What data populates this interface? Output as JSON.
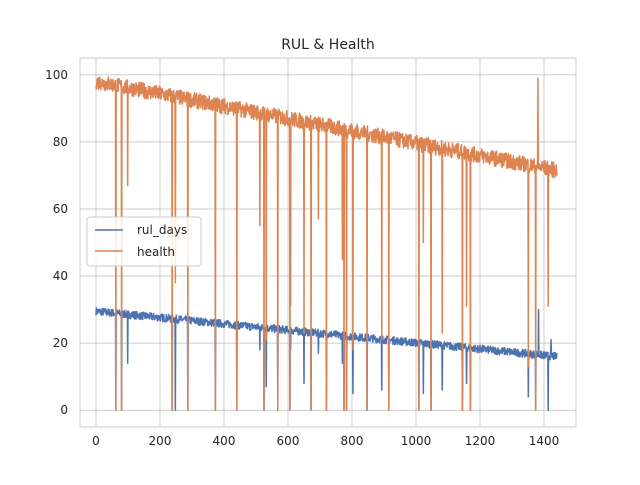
{
  "chart_data": {
    "type": "line",
    "title": "RUL & Health",
    "xlabel": "",
    "ylabel": "",
    "xlim": [
      -50,
      1500
    ],
    "ylim": [
      -5,
      105
    ],
    "xticks": [
      0,
      200,
      400,
      600,
      800,
      1000,
      1200,
      1400
    ],
    "yticks": [
      0,
      20,
      40,
      60,
      80,
      100
    ],
    "grid": true,
    "legend_position": "center-left",
    "colors": {
      "rul_days": "#4c72b0",
      "health": "#dd8452",
      "grid": "#cccccc",
      "axes_edge": "#cccccc"
    },
    "series": [
      {
        "name": "rul_days",
        "x_range": [
          0,
          1440
        ],
        "trend": {
          "start": 29.5,
          "end": 16,
          "noise": 0.9
        },
        "drops": [
          {
            "x": 62,
            "y": 0
          },
          {
            "x": 80,
            "y": 0
          },
          {
            "x": 99,
            "y": 14
          },
          {
            "x": 238,
            "y": 0
          },
          {
            "x": 248,
            "y": 0
          },
          {
            "x": 287,
            "y": 0
          },
          {
            "x": 373,
            "y": 0
          },
          {
            "x": 440,
            "y": 0
          },
          {
            "x": 512,
            "y": 18
          },
          {
            "x": 525,
            "y": 0
          },
          {
            "x": 532,
            "y": 7
          },
          {
            "x": 568,
            "y": 0
          },
          {
            "x": 606,
            "y": 0
          },
          {
            "x": 608,
            "y": 18
          },
          {
            "x": 650,
            "y": 8
          },
          {
            "x": 672,
            "y": 0
          },
          {
            "x": 695,
            "y": 17
          },
          {
            "x": 720,
            "y": 0
          },
          {
            "x": 770,
            "y": 14
          },
          {
            "x": 775,
            "y": 0
          },
          {
            "x": 783,
            "y": 0
          },
          {
            "x": 803,
            "y": 5
          },
          {
            "x": 847,
            "y": 0
          },
          {
            "x": 893,
            "y": 6
          },
          {
            "x": 915,
            "y": 0
          },
          {
            "x": 1009,
            "y": 0
          },
          {
            "x": 1023,
            "y": 5
          },
          {
            "x": 1047,
            "y": 0
          },
          {
            "x": 1082,
            "y": 6
          },
          {
            "x": 1145,
            "y": 0
          },
          {
            "x": 1158,
            "y": 8
          },
          {
            "x": 1170,
            "y": 0
          },
          {
            "x": 1351,
            "y": 4
          },
          {
            "x": 1374,
            "y": 0
          },
          {
            "x": 1413,
            "y": 0
          }
        ],
        "spikes": [
          {
            "x": 1383,
            "y": 30
          },
          {
            "x": 1422,
            "y": 21
          }
        ]
      },
      {
        "name": "health",
        "x_range": [
          0,
          1440
        ],
        "trend": {
          "start": 98,
          "end": 71.5,
          "noise": 1.8
        },
        "drops": [
          {
            "x": 62,
            "y": 0
          },
          {
            "x": 80,
            "y": 0
          },
          {
            "x": 99,
            "y": 67
          },
          {
            "x": 238,
            "y": 0
          },
          {
            "x": 248,
            "y": 38
          },
          {
            "x": 287,
            "y": 0
          },
          {
            "x": 373,
            "y": 0
          },
          {
            "x": 440,
            "y": 0
          },
          {
            "x": 512,
            "y": 55
          },
          {
            "x": 525,
            "y": 0
          },
          {
            "x": 532,
            "y": 21
          },
          {
            "x": 568,
            "y": 0
          },
          {
            "x": 606,
            "y": 0
          },
          {
            "x": 608,
            "y": 31
          },
          {
            "x": 650,
            "y": 23
          },
          {
            "x": 672,
            "y": 0
          },
          {
            "x": 695,
            "y": 57
          },
          {
            "x": 720,
            "y": 0
          },
          {
            "x": 770,
            "y": 45
          },
          {
            "x": 775,
            "y": 0
          },
          {
            "x": 783,
            "y": 0
          },
          {
            "x": 803,
            "y": 18
          },
          {
            "x": 847,
            "y": 0
          },
          {
            "x": 893,
            "y": 21
          },
          {
            "x": 915,
            "y": 0
          },
          {
            "x": 1009,
            "y": 0
          },
          {
            "x": 1023,
            "y": 50
          },
          {
            "x": 1047,
            "y": 0
          },
          {
            "x": 1082,
            "y": 23
          },
          {
            "x": 1145,
            "y": 0
          },
          {
            "x": 1158,
            "y": 31
          },
          {
            "x": 1170,
            "y": 0
          },
          {
            "x": 1351,
            "y": 13
          },
          {
            "x": 1374,
            "y": 0
          },
          {
            "x": 1413,
            "y": 31
          }
        ],
        "spikes": [
          {
            "x": 1381,
            "y": 99
          }
        ]
      }
    ]
  }
}
